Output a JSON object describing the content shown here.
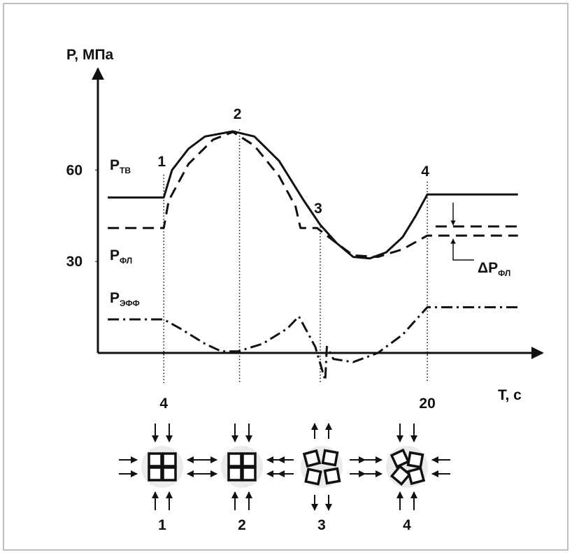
{
  "chart_data": {
    "type": "line",
    "y_axis_label": "P, МПа",
    "x_axis_label": "T, с",
    "xlim": [
      0,
      27
    ],
    "ylim": [
      0,
      94
    ],
    "xticks": [
      4,
      20
    ],
    "yticks": [
      30,
      60
    ],
    "series": [
      {
        "name": "P",
        "subscript": "ТВ",
        "style": "solid",
        "x": [
          0.6,
          4,
          4.5,
          5.5,
          6.5,
          8.2,
          9.5,
          11,
          12.5,
          13.5,
          14.5,
          15.5,
          16.5,
          17.5,
          18.5,
          19.3,
          20,
          25.5
        ],
        "values": [
          51,
          51,
          60,
          67,
          71,
          72.7,
          71,
          63,
          50,
          42,
          36,
          31.5,
          31,
          33,
          38,
          45,
          52,
          52
        ]
      },
      {
        "name": "P",
        "subscript": "ФЛ",
        "style": "dashed",
        "x": [
          0.6,
          4,
          4.3,
          5.5,
          7,
          8.2,
          9.5,
          11,
          12,
          12.3,
          13.3,
          14.5,
          15.5,
          17,
          18.5,
          20,
          25.5
        ],
        "values": [
          41,
          41,
          50,
          62,
          70,
          72.5,
          68,
          58,
          48,
          41,
          41,
          36,
          32,
          31.5,
          34,
          38.5,
          38.5
        ]
      },
      {
        "style": "dashed",
        "x": [
          20.5,
          25.5
        ],
        "values": [
          41.5,
          41.5
        ]
      },
      {
        "name": "P",
        "subscript": "ЭФФ",
        "style": "dashdot",
        "x": [
          0.6,
          4,
          5,
          6.5,
          7.5,
          8.5,
          10,
          11.5,
          12.2,
          13.2,
          13.8,
          13.9,
          14.3,
          15.5,
          17,
          18.5,
          20,
          25.5
        ],
        "values": [
          11,
          11,
          8,
          3,
          0.5,
          0.5,
          3,
          8,
          12,
          2,
          -9,
          2,
          -2,
          -3,
          0,
          6,
          15,
          15
        ]
      }
    ],
    "delta_label": {
      "main": "ΔP",
      "subscript": "ФЛ"
    },
    "markers": [
      {
        "x": 4,
        "label": "1"
      },
      {
        "x": 8.6,
        "label": "2"
      },
      {
        "x": 13.5,
        "label": "3"
      },
      {
        "x": 20,
        "label": "4"
      }
    ],
    "stages": [
      "1",
      "2",
      "3",
      "4"
    ]
  }
}
